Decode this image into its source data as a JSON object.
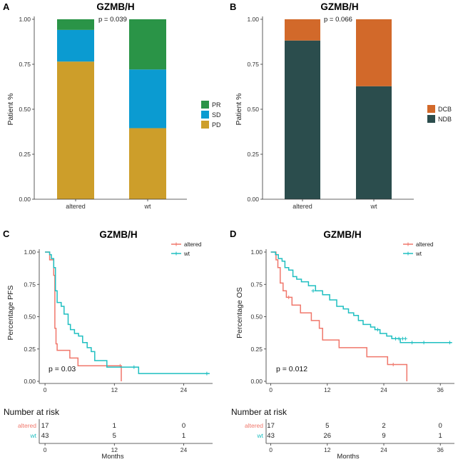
{
  "panels": [
    {
      "letter": "A",
      "title": "GZMB/H",
      "chart_data": {
        "type": "bar",
        "stacked": true,
        "title": "GZMB/H",
        "xlabel": "",
        "ylabel": "Patient %",
        "categories": [
          "altered",
          "wt"
        ],
        "ylim": [
          0,
          1
        ],
        "yticks": [
          "0.00",
          "0.25",
          "0.50",
          "0.75",
          "1.00"
        ],
        "series": [
          {
            "name": "PD",
            "color": "#CD9E2A",
            "values": [
              0.765,
              0.395
            ]
          },
          {
            "name": "SD",
            "color": "#0B9BD1",
            "values": [
              0.176,
              0.326
            ]
          },
          {
            "name": "PR",
            "color": "#2A9447",
            "values": [
              0.059,
              0.279
            ]
          }
        ],
        "legend": {
          "order": [
            "PR",
            "SD",
            "PD"
          ],
          "position": "right"
        },
        "annotation": "p = 0.039"
      }
    },
    {
      "letter": "B",
      "title": "GZMB/H",
      "chart_data": {
        "type": "bar",
        "stacked": true,
        "title": "GZMB/H",
        "xlabel": "",
        "ylabel": "Patient %",
        "categories": [
          "altered",
          "wt"
        ],
        "ylim": [
          0,
          1
        ],
        "yticks": [
          "0.00",
          "0.25",
          "0.50",
          "0.75",
          "1.00"
        ],
        "series": [
          {
            "name": "NDB",
            "color": "#2B4D4D",
            "values": [
              0.882,
              0.628
            ]
          },
          {
            "name": "DCB",
            "color": "#D2692A",
            "values": [
              0.118,
              0.372
            ]
          }
        ],
        "legend": {
          "order": [
            "DCB",
            "NDB"
          ],
          "position": "right"
        },
        "annotation": "p = 0.066"
      }
    },
    {
      "letter": "C",
      "title": "GZMB/H",
      "chart_data": {
        "type": "line",
        "step": true,
        "title": "GZMB/H",
        "xlabel": "Months",
        "ylabel": "Percentage PFS",
        "xlim": [
          -1,
          29
        ],
        "ylim": [
          0,
          1
        ],
        "xticks": [
          0,
          12,
          24
        ],
        "yticks": [
          "0.00",
          "0.25",
          "0.50",
          "0.75",
          "1.00"
        ],
        "series": [
          {
            "name": "altered",
            "color": "#F0776B",
            "x": [
              0,
              0.8,
              1.5,
              1.7,
              1.9,
              2.1,
              4.3,
              5.7,
              13.2
            ],
            "y": [
              1,
              0.94,
              0.82,
              0.41,
              0.29,
              0.24,
              0.18,
              0.12,
              0.0
            ],
            "censor_x": [
              13.0
            ],
            "censor_y": [
              0.12
            ]
          },
          {
            "name": "wt",
            "color": "#1FBFC1",
            "x": [
              0,
              0.8,
              1.1,
              1.5,
              1.8,
              2.1,
              2.8,
              3.3,
              4.0,
              4.4,
              5.1,
              5.8,
              6.5,
              7.3,
              8.0,
              8.6,
              10.7,
              16.2,
              28.5
            ],
            "y": [
              1,
              0.98,
              0.95,
              0.88,
              0.7,
              0.61,
              0.58,
              0.52,
              0.44,
              0.4,
              0.37,
              0.35,
              0.3,
              0.26,
              0.23,
              0.16,
              0.11,
              0.06,
              0.06
            ],
            "censor_x": [
              15.4,
              28.0
            ],
            "censor_y": [
              0.11,
              0.06
            ]
          }
        ],
        "legend": {
          "order": [
            "altered",
            "wt"
          ],
          "position": "top-right"
        },
        "annotation": "p = 0.03",
        "risk_table": {
          "title": "Number at risk",
          "xticks": [
            0,
            12,
            24
          ],
          "rows": [
            {
              "name": "altered",
              "values": [
                17,
                1,
                0
              ]
            },
            {
              "name": "wt",
              "values": [
                43,
                5,
                1
              ]
            }
          ]
        }
      }
    },
    {
      "letter": "D",
      "title": "GZMB/H",
      "chart_data": {
        "type": "line",
        "step": true,
        "title": "GZMB/H",
        "xlabel": "Months",
        "ylabel": "Percentage OS",
        "xlim": [
          -1,
          39
        ],
        "ylim": [
          0,
          1
        ],
        "xticks": [
          0,
          12,
          24,
          36
        ],
        "yticks": [
          "0.00",
          "0.25",
          "0.50",
          "0.75",
          "1.00"
        ],
        "series": [
          {
            "name": "altered",
            "color": "#F0776B",
            "x": [
              0,
              1.1,
              1.5,
              2.0,
              2.6,
              3.3,
              4.5,
              6.3,
              8.6,
              10.3,
              11.0,
              14.5,
              20.4,
              24.8,
              28.9
            ],
            "y": [
              1,
              0.94,
              0.88,
              0.76,
              0.7,
              0.65,
              0.59,
              0.53,
              0.47,
              0.41,
              0.32,
              0.26,
              0.19,
              0.13,
              0.0
            ],
            "censor_x": [
              3.8,
              26.0
            ],
            "censor_y": [
              0.65,
              0.13
            ]
          },
          {
            "name": "wt",
            "color": "#1FBFC1",
            "x": [
              0,
              1.0,
              1.6,
              2.4,
              3.0,
              3.8,
              4.7,
              5.5,
              6.5,
              8.0,
              9.5,
              11.0,
              12.5,
              14.0,
              15.4,
              16.5,
              17.6,
              18.6,
              19.6,
              21.2,
              22.1,
              23.2,
              24.6,
              25.7,
              27.5,
              38.5
            ],
            "y": [
              1,
              0.98,
              0.95,
              0.93,
              0.88,
              0.86,
              0.81,
              0.79,
              0.77,
              0.74,
              0.7,
              0.67,
              0.63,
              0.58,
              0.56,
              0.53,
              0.51,
              0.47,
              0.44,
              0.42,
              0.4,
              0.37,
              0.35,
              0.33,
              0.3,
              0.3
            ],
            "censor_x": [
              9.0,
              22.7,
              26.5,
              27.2,
              28.0,
              28.6,
              30.0,
              32.5,
              38.0
            ],
            "censor_y": [
              0.7,
              0.4,
              0.33,
              0.33,
              0.33,
              0.33,
              0.3,
              0.3,
              0.3
            ]
          }
        ],
        "legend": {
          "order": [
            "altered",
            "wt"
          ],
          "position": "top-right"
        },
        "annotation": "p = 0.012",
        "risk_table": {
          "title": "Number at risk",
          "xticks": [
            0,
            12,
            24,
            36
          ],
          "rows": [
            {
              "name": "altered",
              "values": [
                17,
                5,
                2,
                0
              ]
            },
            {
              "name": "wt",
              "values": [
                43,
                26,
                9,
                1
              ]
            }
          ]
        }
      }
    }
  ]
}
